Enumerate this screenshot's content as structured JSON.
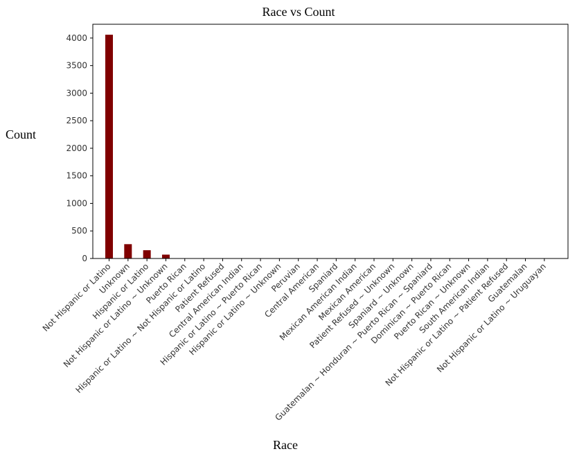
{
  "chart_data": {
    "type": "bar",
    "title": "Race vs Count",
    "xlabel": "Race",
    "ylabel": "Count",
    "ylim": [
      0,
      4250
    ],
    "yticks": [
      0,
      500,
      1000,
      1500,
      2000,
      2500,
      3000,
      3500,
      4000
    ],
    "grid": false,
    "legend": "none",
    "bar_color": "#800000",
    "categories": [
      "Not Hispanic or Latino",
      "Unknown",
      "Hispanic or Latino",
      "Not Hispanic or Latino ~ Unknown",
      "Puerto Rican",
      "Hispanic or Latino ~ Not Hispanic or Latino",
      "Patient Refused",
      "Central American Indian",
      "Hispanic or Latino ~ Puerto Rican",
      "Hispanic or Latino ~ Unknown",
      "Peruvian",
      "Central American",
      "Spaniard",
      "Mexican American Indian",
      "Mexican American",
      "Patient Refused ~ Unknown",
      "Spaniard ~ Unknown",
      "Guatemalan ~ Honduran ~ Puerto Rican ~ Spaniard",
      "Dominican ~ Puerto Rican",
      "Puerto Rican ~ Unknown",
      "South American Indian",
      "Not Hispanic or Latino ~ Patient Refused",
      "Guatemalan",
      "Not Hispanic or Latino ~ Uruguayan"
    ],
    "values": [
      4060,
      260,
      150,
      70,
      4,
      3,
      3,
      2,
      2,
      2,
      1,
      1,
      1,
      1,
      1,
      1,
      1,
      1,
      1,
      1,
      1,
      1,
      1,
      1
    ]
  }
}
